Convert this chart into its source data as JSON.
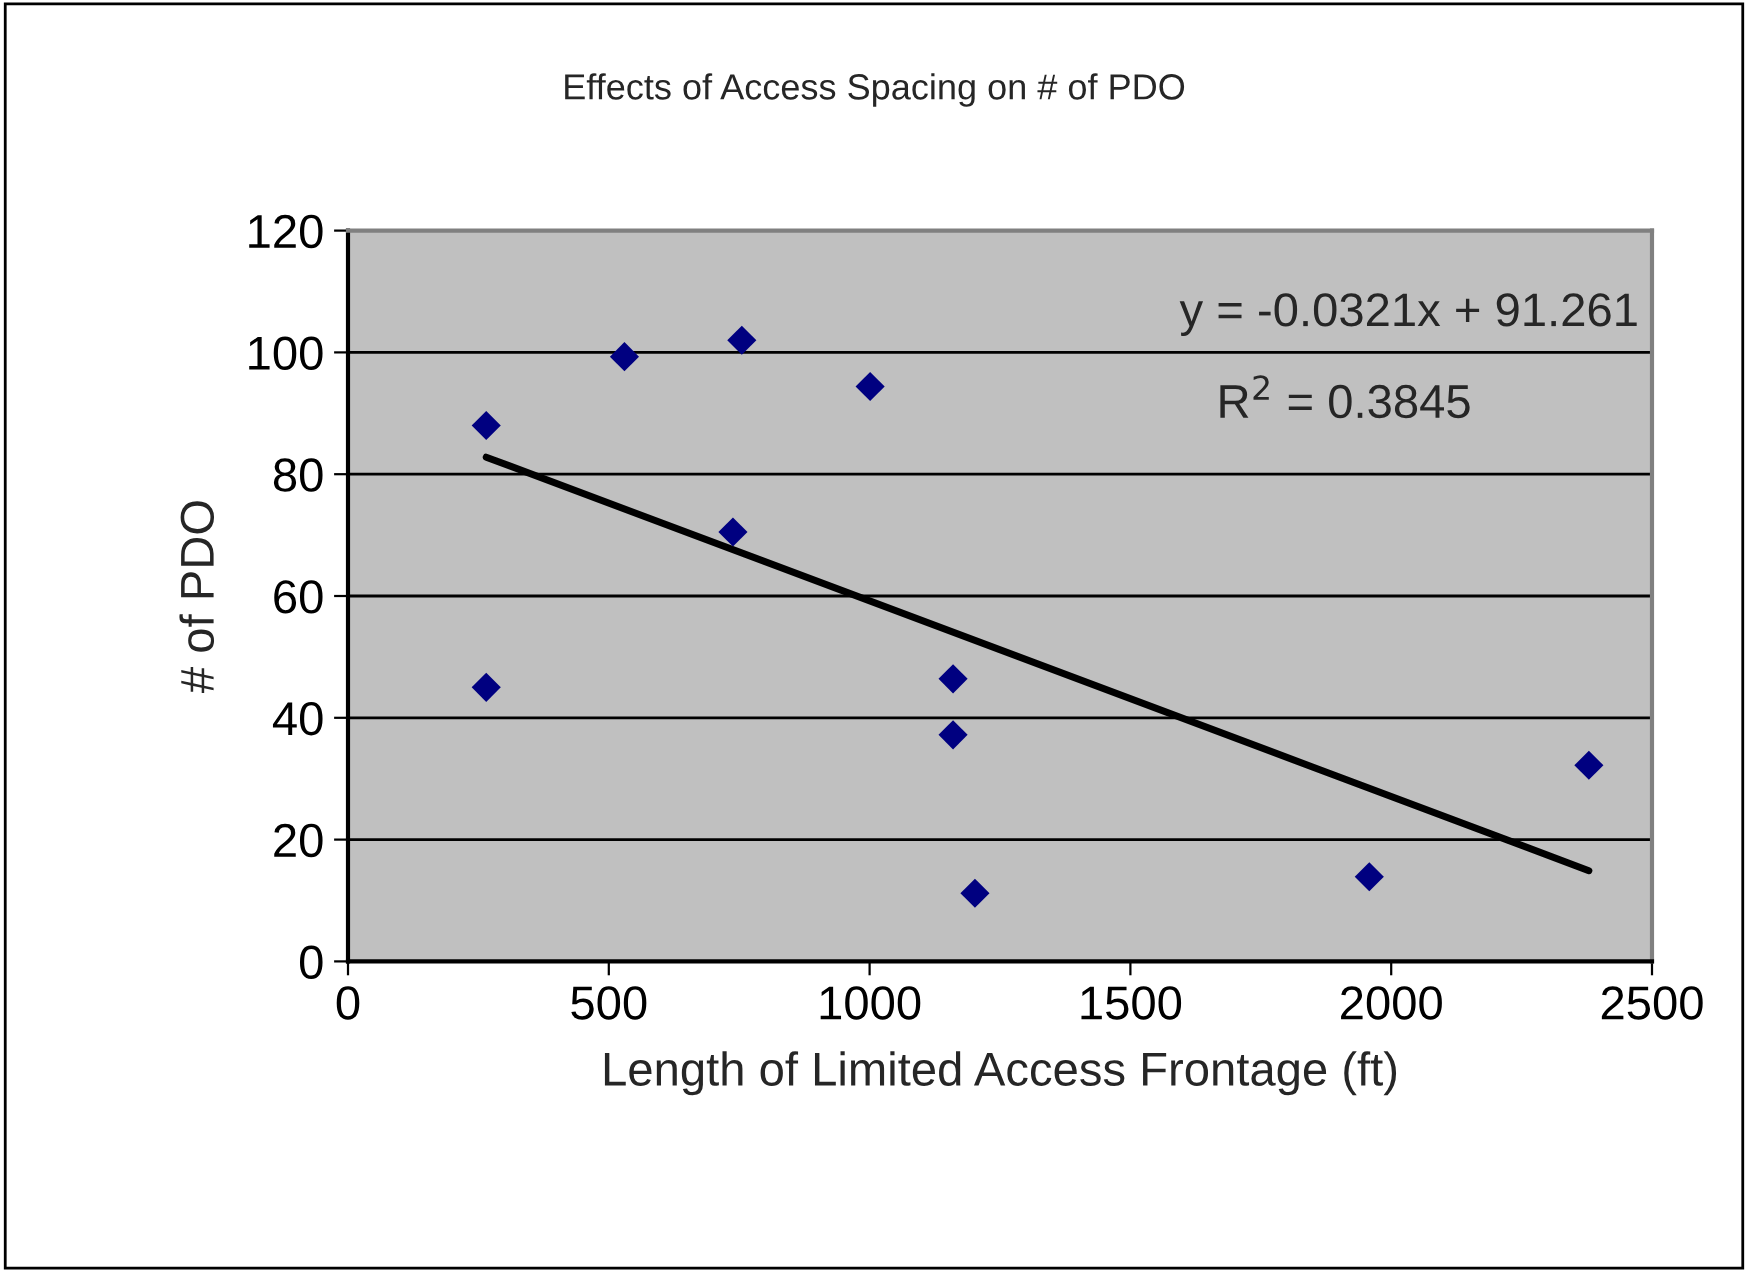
{
  "chart_data": {
    "type": "scatter",
    "title": "Effects of Access Spacing on # of PDO",
    "xlabel": "Length of Limited Access Frontage (ft)",
    "ylabel": "# of PDO",
    "series": [
      {
        "color": "#000080",
        "marker": "diamond",
        "x": [
          265,
          265,
          530,
          755,
          738,
          1001,
          1160,
          1160,
          1202,
          1958,
          2379
        ],
        "values": [
          88.0,
          45.0,
          99.3,
          102.0,
          70.5,
          94.4,
          46.4,
          37.2,
          11.2,
          13.9,
          32.2
        ]
      },
      {
        "type": "line",
        "color": "#000000",
        "line_style": "solid",
        "x": [
          265,
          2379
        ],
        "values": [
          82.8,
          14.9
        ]
      }
    ],
    "annotations": [
      "y = -0.0321x + 91.261",
      "R$^{2}$ = 0.3845"
    ],
    "xlim": [
      0,
      2500
    ],
    "xticks": [
      0,
      500,
      1000,
      1500,
      2000,
      2500
    ],
    "ylim": [
      0,
      120
    ],
    "yticks": [
      0,
      20,
      40,
      60,
      80,
      100,
      120
    ],
    "grid": "y",
    "legend": false
  }
}
